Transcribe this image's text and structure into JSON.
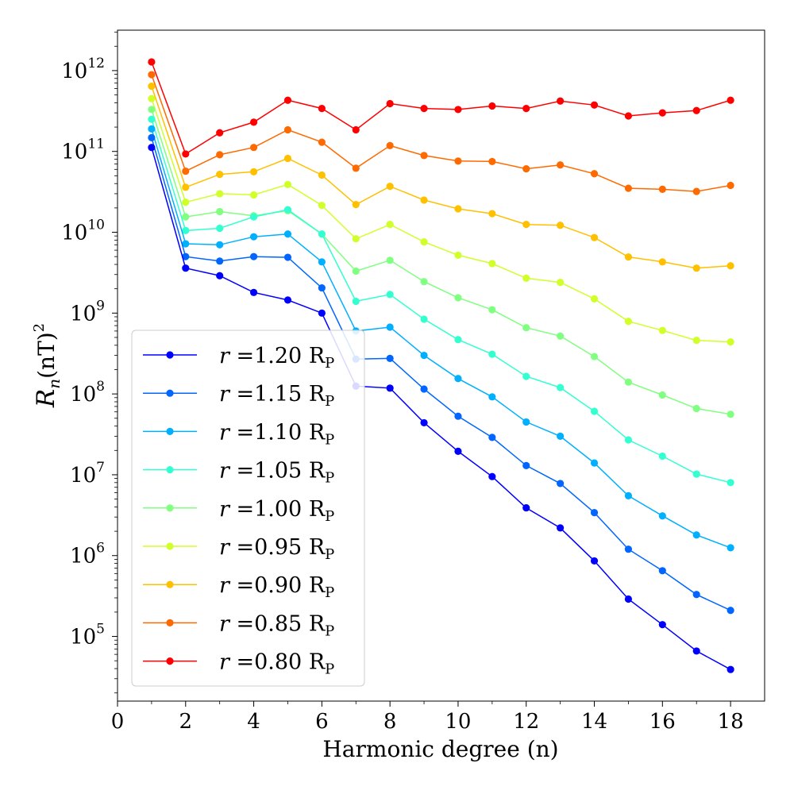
{
  "chart_data": {
    "type": "line",
    "title": "",
    "xlabel": "Harmonic degree (n)",
    "ylabel_main": "R",
    "ylabel_sub": "n",
    "ylabel_unit": "(nT)",
    "ylabel_sup": "2",
    "xlim": [
      0,
      19
    ],
    "ylim_log10": [
      4.2,
      12.5
    ],
    "yscale": "log",
    "grid": false,
    "legend_position": "lower-left",
    "x_ticks": [
      0,
      2,
      4,
      6,
      8,
      10,
      12,
      14,
      16,
      18
    ],
    "x_tick_labels": [
      "0",
      "2",
      "4",
      "6",
      "8",
      "10",
      "12",
      "14",
      "16",
      "18"
    ],
    "y_ticks": [
      {
        "exp": 5,
        "base": "10",
        "sup": "5"
      },
      {
        "exp": 6,
        "base": "10",
        "sup": "6"
      },
      {
        "exp": 7,
        "base": "10",
        "sup": "7"
      },
      {
        "exp": 8,
        "base": "10",
        "sup": "8"
      },
      {
        "exp": 9,
        "base": "10",
        "sup": "9"
      },
      {
        "exp": 10,
        "base": "10",
        "sup": "10"
      },
      {
        "exp": 11,
        "base": "10",
        "sup": "11"
      },
      {
        "exp": 12,
        "base": "10",
        "sup": "12"
      }
    ],
    "x": [
      1,
      2,
      3,
      4,
      5,
      6,
      7,
      8,
      9,
      10,
      11,
      12,
      13,
      14,
      15,
      16,
      17,
      18
    ],
    "series": [
      {
        "name": "r = 1.20 R_P",
        "r_value": "1.20",
        "color": "#0000ff",
        "values": [
          112000000000.0,
          3600000000.0,
          2900000000.0,
          1800000000.0,
          1450000000.0,
          1000000000.0,
          125000000.0,
          118000000.0,
          44000000.0,
          19500000.0,
          9500000.0,
          3900000.0,
          2200000.0,
          860000.0,
          290000.0,
          140000.0,
          66000.0,
          39000.0
        ]
      },
      {
        "name": "r = 1.15 R_P",
        "r_value": "1.15",
        "color": "#0066ff",
        "values": [
          148000000000.0,
          5000000000.0,
          4400000000.0,
          5000000000.0,
          4900000000.0,
          2050000000.0,
          270000000.0,
          275000000.0,
          115000000.0,
          53000000.0,
          29000000.0,
          13000000.0,
          7800000.0,
          3400000.0,
          1200000.0,
          650000.0,
          330000.0,
          210000.0
        ]
      },
      {
        "name": "r = 1.10 R_P",
        "r_value": "1.10",
        "color": "#00b0ff",
        "values": [
          190000000000.0,
          7200000000.0,
          7000000000.0,
          8800000000.0,
          9500000000.0,
          4300000000.0,
          600000000.0,
          670000000.0,
          300000000.0,
          155000000.0,
          92000000.0,
          45000000.0,
          30000000.0,
          14000000.0,
          5500000.0,
          3100000.0,
          1800000.0,
          1250000.0
        ]
      },
      {
        "name": "r = 1.05 R_P",
        "r_value": "1.05",
        "color": "#33ffd0",
        "values": [
          250000000000.0,
          10500000000.0,
          11200000000.0,
          15500000000.0,
          19000000000.0,
          9500000000.0,
          1400000000.0,
          1700000000.0,
          840000000.0,
          470000000.0,
          310000000.0,
          165000000.0,
          120000000.0,
          61000000.0,
          27000000.0,
          17000000.0,
          10200000.0,
          8000000.0
        ]
      },
      {
        "name": "r = 1.00 R_P",
        "r_value": "1.00",
        "color": "#80ff80",
        "values": [
          330000000000.0,
          15500000000.0,
          18000000000.0,
          16000000000.0,
          18500000000.0,
          9500000000.0,
          3300000000.0,
          4500000000.0,
          2450000000.0,
          1550000000.0,
          1100000000.0,
          660000000.0,
          520000000.0,
          290000000.0,
          140000000.0,
          97000000.0,
          66000000.0,
          56000000.0
        ]
      },
      {
        "name": "r = 0.95 R_P",
        "r_value": "0.95",
        "color": "#d0ff2a",
        "values": [
          450000000000.0,
          23500000000.0,
          30000000000.0,
          29000000000.0,
          39000000000.0,
          21500000000.0,
          8300000000.0,
          12500000000.0,
          7600000000.0,
          5200000000.0,
          4100000000.0,
          2700000000.0,
          2400000000.0,
          1500000000.0,
          790000000.0,
          610000000.0,
          460000000.0,
          440000000.0
        ]
      },
      {
        "name": "r = 0.90 R_P",
        "r_value": "0.90",
        "color": "#ffc000",
        "values": [
          640000000000.0,
          36000000000.0,
          52000000000.0,
          56000000000.0,
          82000000000.0,
          51000000000.0,
          22000000000.0,
          37000000000.0,
          25000000000.0,
          19500000000.0,
          17000000000.0,
          12500000000.0,
          12200000000.0,
          8600000000.0,
          4950000000.0,
          4300000000.0,
          3600000000.0,
          3850000000.0
        ]
      },
      {
        "name": "r = 0.85 R_P",
        "r_value": "0.85",
        "color": "#ff6a00",
        "values": [
          890000000000.0,
          57000000000.0,
          91000000000.0,
          112000000000.0,
          185000000000.0,
          130000000000.0,
          62000000000.0,
          118000000000.0,
          89000000000.0,
          76000000000.0,
          75000000000.0,
          61000000000.0,
          68000000000.0,
          53000000000.0,
          35000000000.0,
          34000000000.0,
          32000000000.0,
          38000000000.0
        ]
      },
      {
        "name": "r = 0.80 R_P",
        "r_value": "0.80",
        "color": "#ff0000",
        "values": [
          1280000000000.0,
          93000000000.0,
          170000000000.0,
          230000000000.0,
          430000000000.0,
          340000000000.0,
          185000000000.0,
          390000000000.0,
          340000000000.0,
          330000000000.0,
          365000000000.0,
          340000000000.0,
          420000000000.0,
          375000000000.0,
          275000000000.0,
          300000000000.0,
          320000000000.0,
          430000000000.0
        ]
      }
    ],
    "legend": {
      "r_symbol": "r",
      "equals": "=",
      "unit_main": "R",
      "unit_sub": "P"
    }
  }
}
